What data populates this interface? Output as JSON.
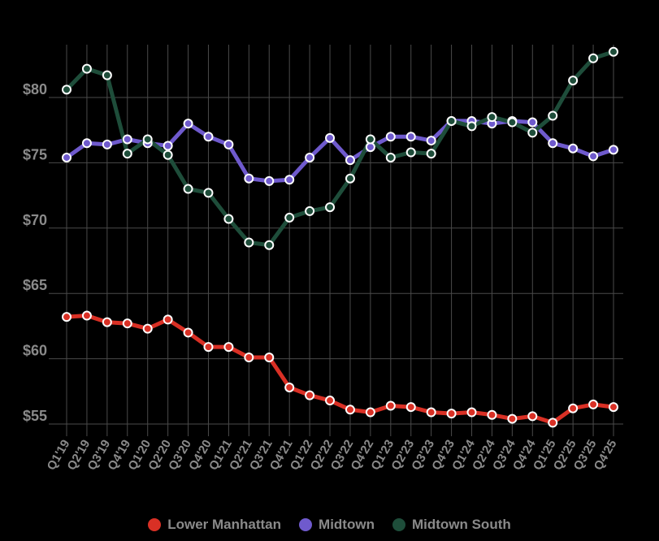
{
  "chart_data": {
    "type": "line",
    "title": "",
    "xlabel": "",
    "ylabel": "",
    "ylim": [
      54,
      84
    ],
    "yticks": [
      55,
      60,
      65,
      70,
      75,
      80
    ],
    "ytick_labels": [
      "$55",
      "$60",
      "$65",
      "$70",
      "$75",
      "$80"
    ],
    "grid": true,
    "legend_position": "bottom",
    "categories": [
      "Q1'19",
      "Q2'19",
      "Q3'19",
      "Q4'19",
      "Q1'20",
      "Q2'20",
      "Q3'20",
      "Q4'20",
      "Q1'21",
      "Q2'21",
      "Q3'21",
      "Q4'21",
      "Q1'22",
      "Q2'22",
      "Q3'22",
      "Q4'22",
      "Q1'23",
      "Q2'23",
      "Q3'23",
      "Q4'23",
      "Q1'24",
      "Q2'24",
      "Q3'24",
      "Q4'24",
      "Q1'25",
      "Q2'25",
      "Q3'25",
      "Q4'25"
    ],
    "series": [
      {
        "name": "Lower Manhattan",
        "color": "#d93025",
        "values": [
          63.2,
          63.3,
          62.8,
          62.7,
          62.3,
          63.0,
          62.0,
          60.9,
          60.9,
          60.1,
          60.1,
          57.8,
          57.2,
          56.8,
          56.1,
          55.9,
          56.4,
          56.3,
          55.9,
          55.8,
          55.9,
          55.7,
          55.4,
          55.6,
          55.1,
          56.2,
          56.5,
          56.3
        ]
      },
      {
        "name": "Midtown",
        "color": "#6f5acd",
        "values": [
          75.4,
          76.5,
          76.4,
          76.8,
          76.5,
          76.3,
          78.0,
          77.0,
          76.4,
          73.8,
          73.6,
          73.7,
          75.4,
          76.9,
          75.2,
          76.2,
          77.0,
          77.0,
          76.7,
          78.2,
          78.2,
          78.0,
          78.2,
          78.1,
          76.5,
          76.1,
          75.5,
          76.0
        ]
      },
      {
        "name": "Midtown South",
        "color": "#1e4d3a",
        "values": [
          80.6,
          82.2,
          81.7,
          75.7,
          76.8,
          75.6,
          73.0,
          72.7,
          70.7,
          68.9,
          68.7,
          70.8,
          71.3,
          71.6,
          73.8,
          76.8,
          75.4,
          75.8,
          75.7,
          78.2,
          77.8,
          78.5,
          78.1,
          77.3,
          78.6,
          81.3,
          83.0,
          83.5
        ]
      }
    ]
  }
}
